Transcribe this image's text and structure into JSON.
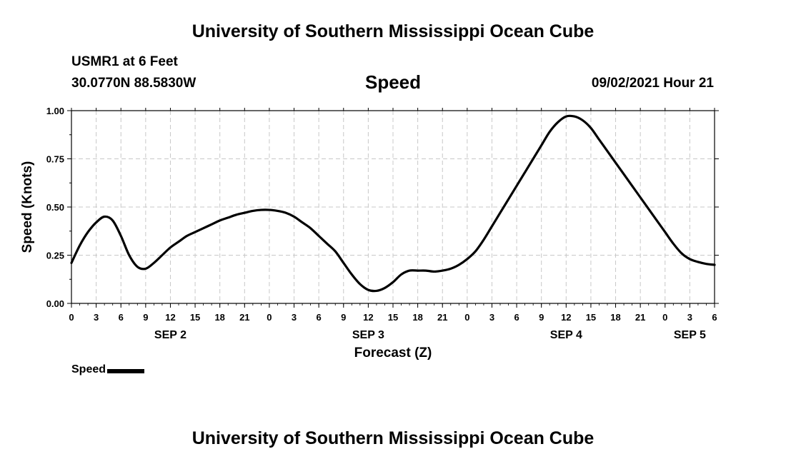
{
  "page": {
    "title": "University of Southern Mississippi Ocean Cube",
    "footer": "University of Southern Mississippi Ocean Cube",
    "station": "USMR1 at 6 Feet",
    "coordinates": "30.0770N  88.5830W",
    "datetime": "09/02/2021 Hour 21"
  },
  "chart_data": {
    "type": "line",
    "title": "Speed",
    "xlabel": "Forecast (Z)",
    "ylabel": "Speed (Knots)",
    "x_unit": "hours",
    "xlim": [
      0,
      78
    ],
    "ylim": [
      0,
      1.0
    ],
    "yticks": [
      0.0,
      0.25,
      0.5,
      0.75,
      1.0
    ],
    "ytick_labels": [
      "0.00",
      "0.25",
      "0.50",
      "0.75",
      "1.00"
    ],
    "xticks": [
      0,
      3,
      6,
      9,
      12,
      15,
      18,
      21,
      24,
      27,
      30,
      33,
      36,
      39,
      42,
      45,
      48,
      51,
      54,
      57,
      60,
      63,
      66,
      69,
      72,
      75,
      78
    ],
    "xtick_labels": [
      "0",
      "3",
      "6",
      "9",
      "12",
      "15",
      "18",
      "21",
      "0",
      "3",
      "6",
      "9",
      "12",
      "15",
      "18",
      "21",
      "0",
      "3",
      "6",
      "9",
      "12",
      "15",
      "18",
      "21",
      "0",
      "3",
      "6"
    ],
    "day_labels": [
      {
        "label": "SEP 2",
        "at": 12
      },
      {
        "label": "SEP 3",
        "at": 36
      },
      {
        "label": "SEP 4",
        "at": 60
      },
      {
        "label": "SEP 5",
        "at": 75
      }
    ],
    "grid": true,
    "legend_position": "bottom-left",
    "series": [
      {
        "name": "Speed",
        "color": "#000000",
        "x": [
          0,
          1,
          2,
          3,
          4,
          5,
          6,
          7,
          8,
          9,
          10,
          11,
          12,
          13,
          14,
          15,
          16,
          17,
          18,
          19,
          20,
          21,
          22,
          23,
          24,
          25,
          26,
          27,
          28,
          29,
          30,
          31,
          32,
          33,
          34,
          35,
          36,
          37,
          38,
          39,
          40,
          41,
          42,
          43,
          44,
          45,
          46,
          47,
          48,
          49,
          50,
          51,
          52,
          53,
          54,
          55,
          56,
          57,
          58,
          59,
          60,
          61,
          62,
          63,
          64,
          65,
          66,
          67,
          68,
          69,
          70,
          71,
          72,
          73,
          74,
          75,
          76,
          77,
          78
        ],
        "values": [
          0.21,
          0.3,
          0.37,
          0.42,
          0.45,
          0.43,
          0.35,
          0.25,
          0.19,
          0.18,
          0.21,
          0.25,
          0.29,
          0.32,
          0.35,
          0.37,
          0.39,
          0.41,
          0.43,
          0.445,
          0.46,
          0.47,
          0.48,
          0.485,
          0.485,
          0.48,
          0.47,
          0.45,
          0.42,
          0.39,
          0.35,
          0.31,
          0.27,
          0.21,
          0.15,
          0.1,
          0.07,
          0.065,
          0.08,
          0.11,
          0.15,
          0.17,
          0.17,
          0.17,
          0.165,
          0.17,
          0.18,
          0.2,
          0.23,
          0.27,
          0.33,
          0.4,
          0.47,
          0.54,
          0.61,
          0.68,
          0.75,
          0.82,
          0.89,
          0.94,
          0.97,
          0.97,
          0.95,
          0.91,
          0.85,
          0.79,
          0.73,
          0.67,
          0.61,
          0.55,
          0.49,
          0.43,
          0.37,
          0.31,
          0.26,
          0.23,
          0.215,
          0.205,
          0.2
        ]
      }
    ]
  }
}
